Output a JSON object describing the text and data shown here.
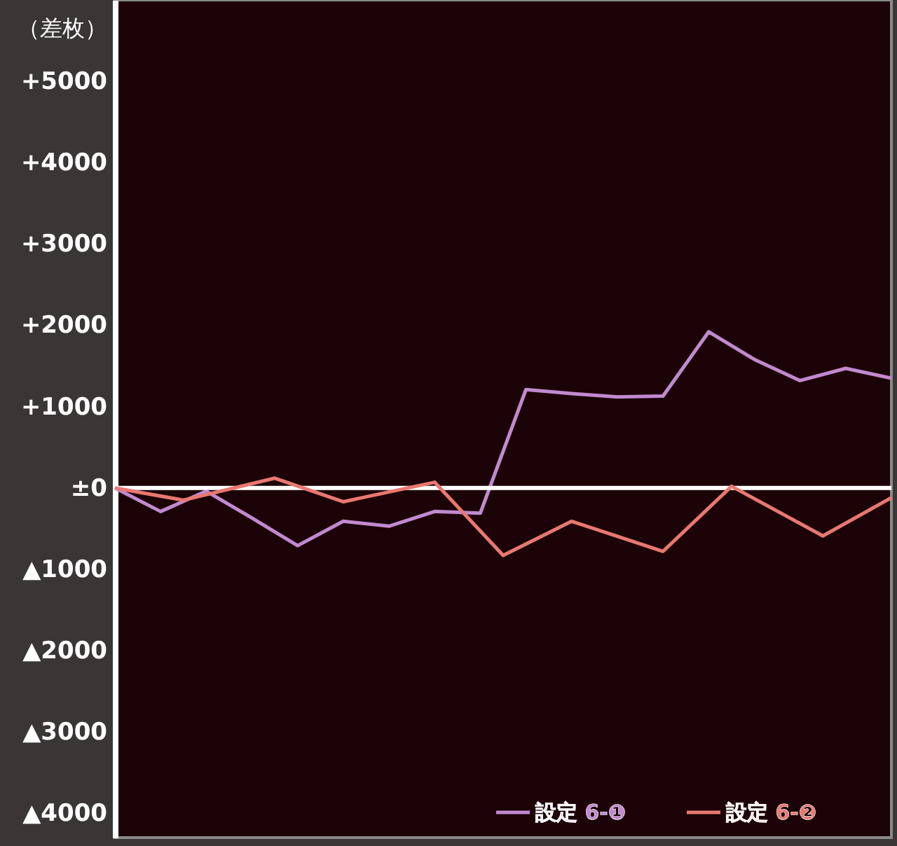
{
  "chart_data": {
    "type": "line",
    "ylabel": "（差枚）",
    "categories": [
      null,
      null,
      null,
      null,
      null,
      null,
      null,
      null,
      null,
      null,
      null,
      null,
      null,
      null,
      null,
      null,
      null,
      null,
      null,
      null,
      null,
      null,
      null,
      null,
      null,
      null,
      null,
      null,
      null,
      null,
      null,
      null,
      null,
      null,
      null
    ],
    "ylim": [
      -4300,
      6000
    ],
    "yticks": [
      {
        "value": 5000,
        "label": "+5000"
      },
      {
        "value": 4000,
        "label": "+4000"
      },
      {
        "value": 3000,
        "label": "+3000"
      },
      {
        "value": 2000,
        "label": "+2000"
      },
      {
        "value": 1000,
        "label": "+1000"
      },
      {
        "value": 0,
        "label": "±0"
      },
      {
        "value": -1000,
        "label": "▲1000"
      },
      {
        "value": -2000,
        "label": "▲2000"
      },
      {
        "value": -3000,
        "label": "▲3000"
      },
      {
        "value": -4000,
        "label": "▲4000"
      }
    ],
    "tick_labels": "y",
    "grid": false,
    "legend": "bottom right",
    "marker": "none",
    "line_style": "solid",
    "ref_lines": [
      {
        "axis": "y",
        "value": 0,
        "color": "#ffffff"
      }
    ],
    "series": [
      {
        "name": "設定 6-❶",
        "color": "#c08ad0",
        "values": [
          0,
          null,
          -290,
          null,
          -40,
          null,
          -370,
          null,
          -710,
          null,
          -410,
          null,
          -470,
          null,
          -290,
          null,
          -310,
          null,
          1210,
          null,
          1160,
          null,
          1120,
          null,
          1130,
          null,
          1920,
          null,
          1580,
          null,
          1320,
          null,
          1470,
          null,
          1350
        ]
      },
      {
        "name": "設定 6-❷",
        "color": "#e87870",
        "values": [
          0,
          null,
          null,
          -150,
          null,
          null,
          null,
          120,
          null,
          null,
          -170,
          null,
          null,
          null,
          70,
          null,
          null,
          -830,
          null,
          null,
          -410,
          null,
          null,
          null,
          -780,
          null,
          null,
          20,
          null,
          null,
          null,
          -590,
          null,
          null,
          -120
        ]
      }
    ]
  }
}
